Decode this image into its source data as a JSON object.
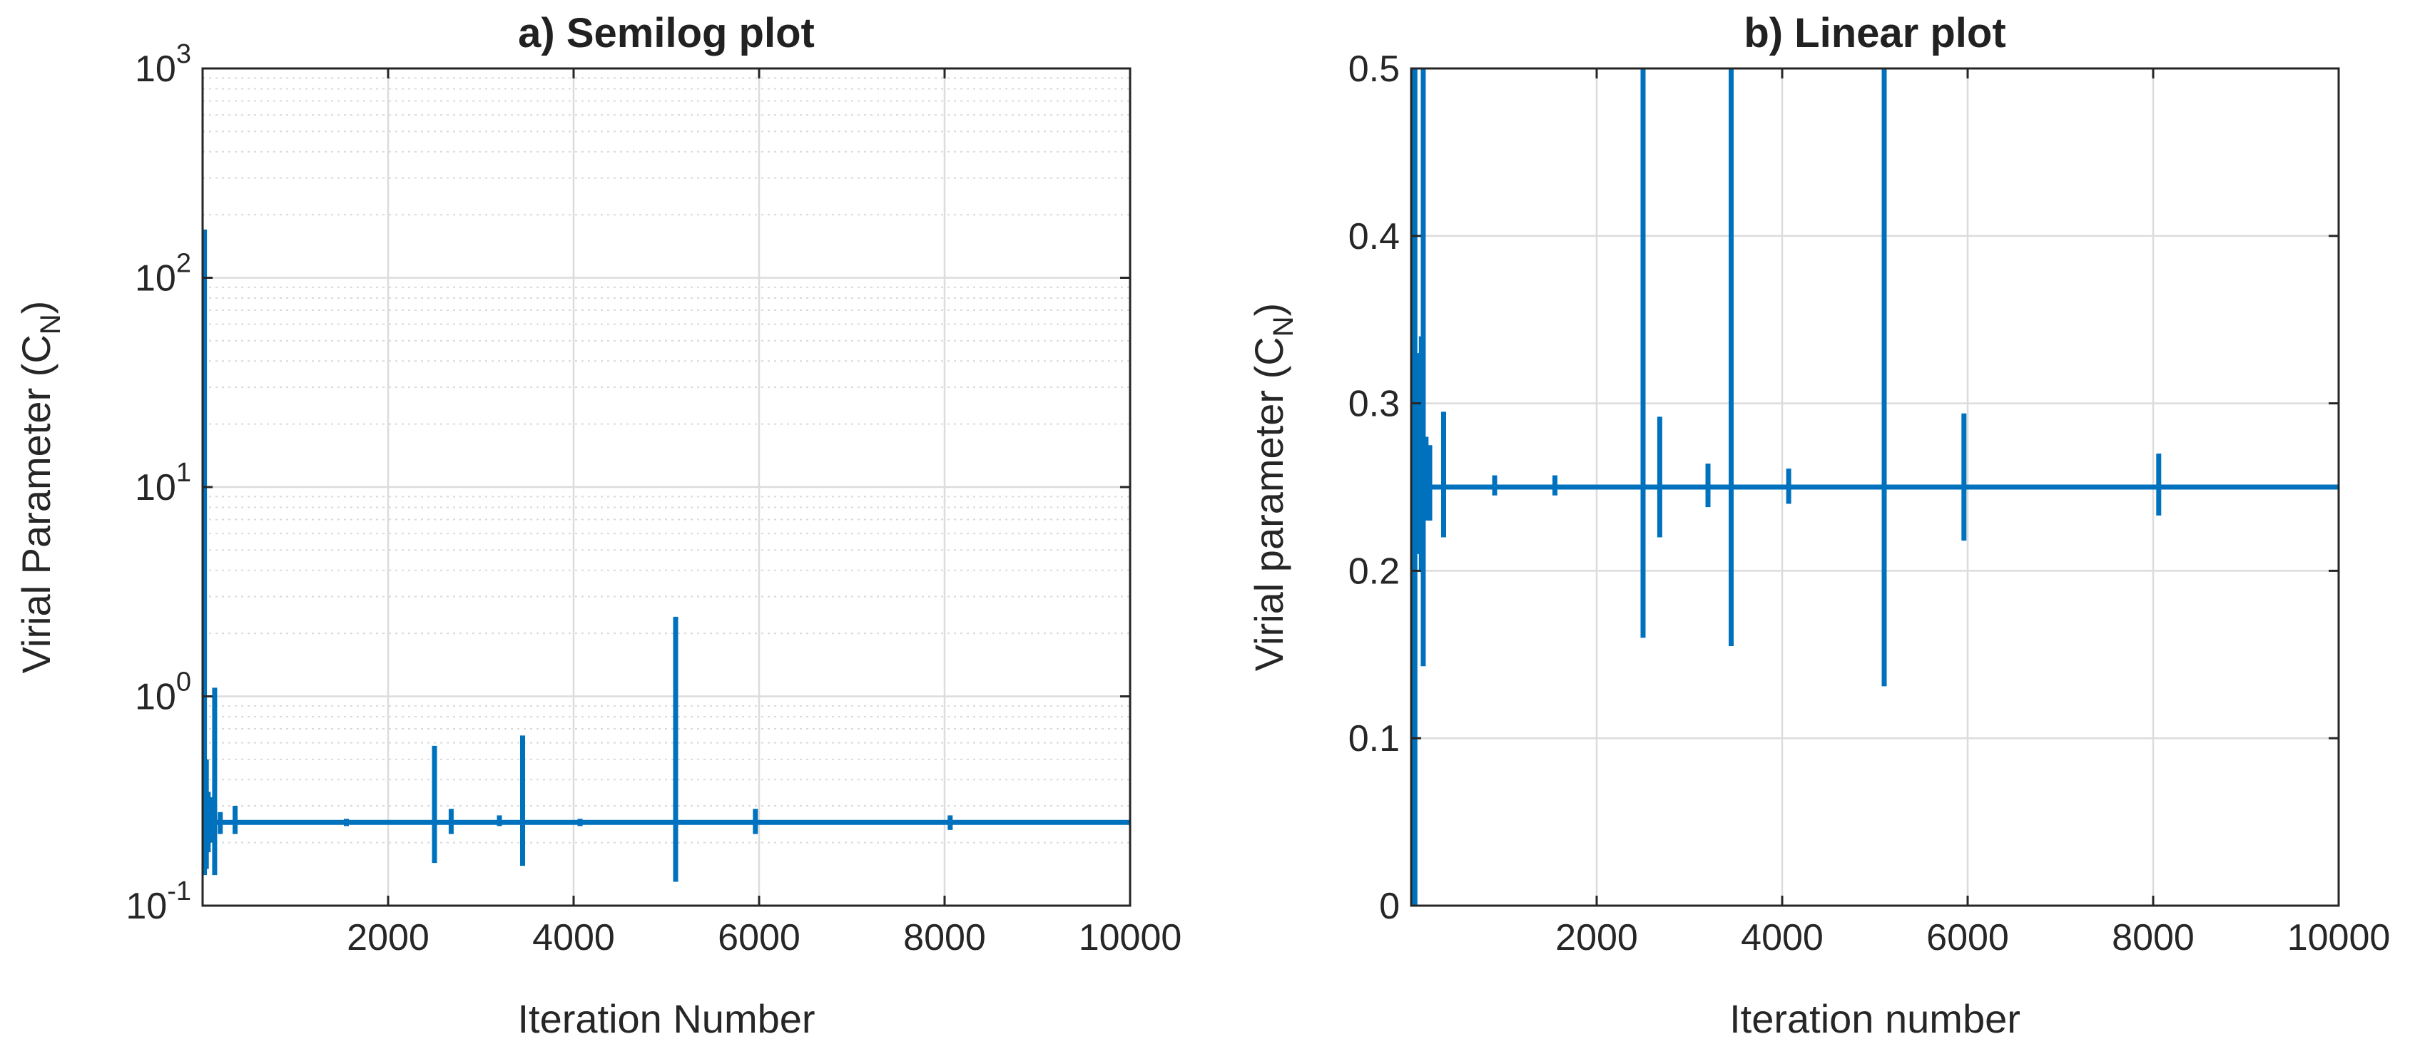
{
  "chart_data": [
    {
      "type": "line",
      "title": "a) Semilog plot",
      "xlabel": "Iteration Number",
      "ylabel": {
        "base": "Virial Parameter (C",
        "sub": "N",
        "close": ")"
      },
      "xlim": [
        0,
        10000
      ],
      "ylim": [
        0.1,
        1000
      ],
      "yscale": "log",
      "grid": true,
      "minor_grid": true,
      "xticks": [
        2000,
        4000,
        6000,
        8000,
        10000
      ],
      "xtick_labels": [
        "2000",
        "4000",
        "6000",
        "8000",
        "10000"
      ],
      "yticks": [
        0.1,
        1,
        10,
        100,
        1000
      ],
      "ytick_labels": [
        {
          "base": "10",
          "exp": "-1"
        },
        {
          "base": "10",
          "exp": "0"
        },
        {
          "base": "10",
          "exp": "1"
        },
        {
          "base": "10",
          "exp": "2"
        },
        {
          "base": "10",
          "exp": "3"
        }
      ],
      "series": [
        {
          "color": "#0072BD",
          "baseline": 0.25,
          "spikes": [
            {
              "x": 20,
              "lo": 0.14,
              "hi": 170
            },
            {
              "x": 40,
              "lo": 0.15,
              "hi": 0.5
            },
            {
              "x": 60,
              "lo": 0.18,
              "hi": 0.35
            },
            {
              "x": 90,
              "lo": 0.2,
              "hi": 0.33
            },
            {
              "x": 130,
              "lo": 0.14,
              "hi": 1.1
            },
            {
              "x": 190,
              "lo": 0.22,
              "hi": 0.28
            },
            {
              "x": 350,
              "lo": 0.22,
              "hi": 0.3
            },
            {
              "x": 1550,
              "lo": 0.24,
              "hi": 0.26
            },
            {
              "x": 2500,
              "lo": 0.16,
              "hi": 0.58
            },
            {
              "x": 2680,
              "lo": 0.22,
              "hi": 0.29
            },
            {
              "x": 3200,
              "lo": 0.24,
              "hi": 0.27
            },
            {
              "x": 3450,
              "lo": 0.155,
              "hi": 0.65
            },
            {
              "x": 4070,
              "lo": 0.24,
              "hi": 0.26
            },
            {
              "x": 5100,
              "lo": 0.13,
              "hi": 2.4
            },
            {
              "x": 5960,
              "lo": 0.22,
              "hi": 0.29
            },
            {
              "x": 8060,
              "lo": 0.23,
              "hi": 0.27
            }
          ]
        }
      ]
    },
    {
      "type": "line",
      "title": "b) Linear plot",
      "xlabel": "Iteration number",
      "ylabel": {
        "base": "Virial parameter (C",
        "sub": "N",
        "close": ")"
      },
      "xlim": [
        0,
        10000
      ],
      "ylim": [
        0,
        0.5
      ],
      "yscale": "linear",
      "grid": true,
      "minor_grid": false,
      "xticks": [
        2000,
        4000,
        6000,
        8000,
        10000
      ],
      "xtick_labels": [
        "2000",
        "4000",
        "6000",
        "8000",
        "10000"
      ],
      "yticks": [
        0,
        0.1,
        0.2,
        0.3,
        0.4,
        0.5
      ],
      "ytick_labels": [
        "0",
        "0.1",
        "0.2",
        "0.3",
        "0.4",
        "0.5"
      ],
      "series": [
        {
          "color": "#0072BD",
          "baseline": 0.25,
          "spikes": [
            {
              "x": 15,
              "lo": 0,
              "hi": 0.5
            },
            {
              "x": 40,
              "lo": 0,
              "hi": 0.5
            },
            {
              "x": 70,
              "lo": 0.21,
              "hi": 0.33
            },
            {
              "x": 110,
              "lo": 0.2,
              "hi": 0.34
            },
            {
              "x": 130,
              "lo": 0.143,
              "hi": 0.5
            },
            {
              "x": 160,
              "lo": 0.23,
              "hi": 0.28
            },
            {
              "x": 200,
              "lo": 0.23,
              "hi": 0.275
            },
            {
              "x": 350,
              "lo": 0.22,
              "hi": 0.295
            },
            {
              "x": 900,
              "lo": 0.245,
              "hi": 0.257
            },
            {
              "x": 1550,
              "lo": 0.245,
              "hi": 0.257
            },
            {
              "x": 2500,
              "lo": 0.16,
              "hi": 0.5
            },
            {
              "x": 2680,
              "lo": 0.22,
              "hi": 0.292
            },
            {
              "x": 3200,
              "lo": 0.238,
              "hi": 0.264
            },
            {
              "x": 3450,
              "lo": 0.155,
              "hi": 0.5
            },
            {
              "x": 4070,
              "lo": 0.24,
              "hi": 0.261
            },
            {
              "x": 5100,
              "lo": 0.131,
              "hi": 0.5
            },
            {
              "x": 5960,
              "lo": 0.218,
              "hi": 0.294
            },
            {
              "x": 8060,
              "lo": 0.233,
              "hi": 0.27
            }
          ]
        }
      ]
    }
  ]
}
